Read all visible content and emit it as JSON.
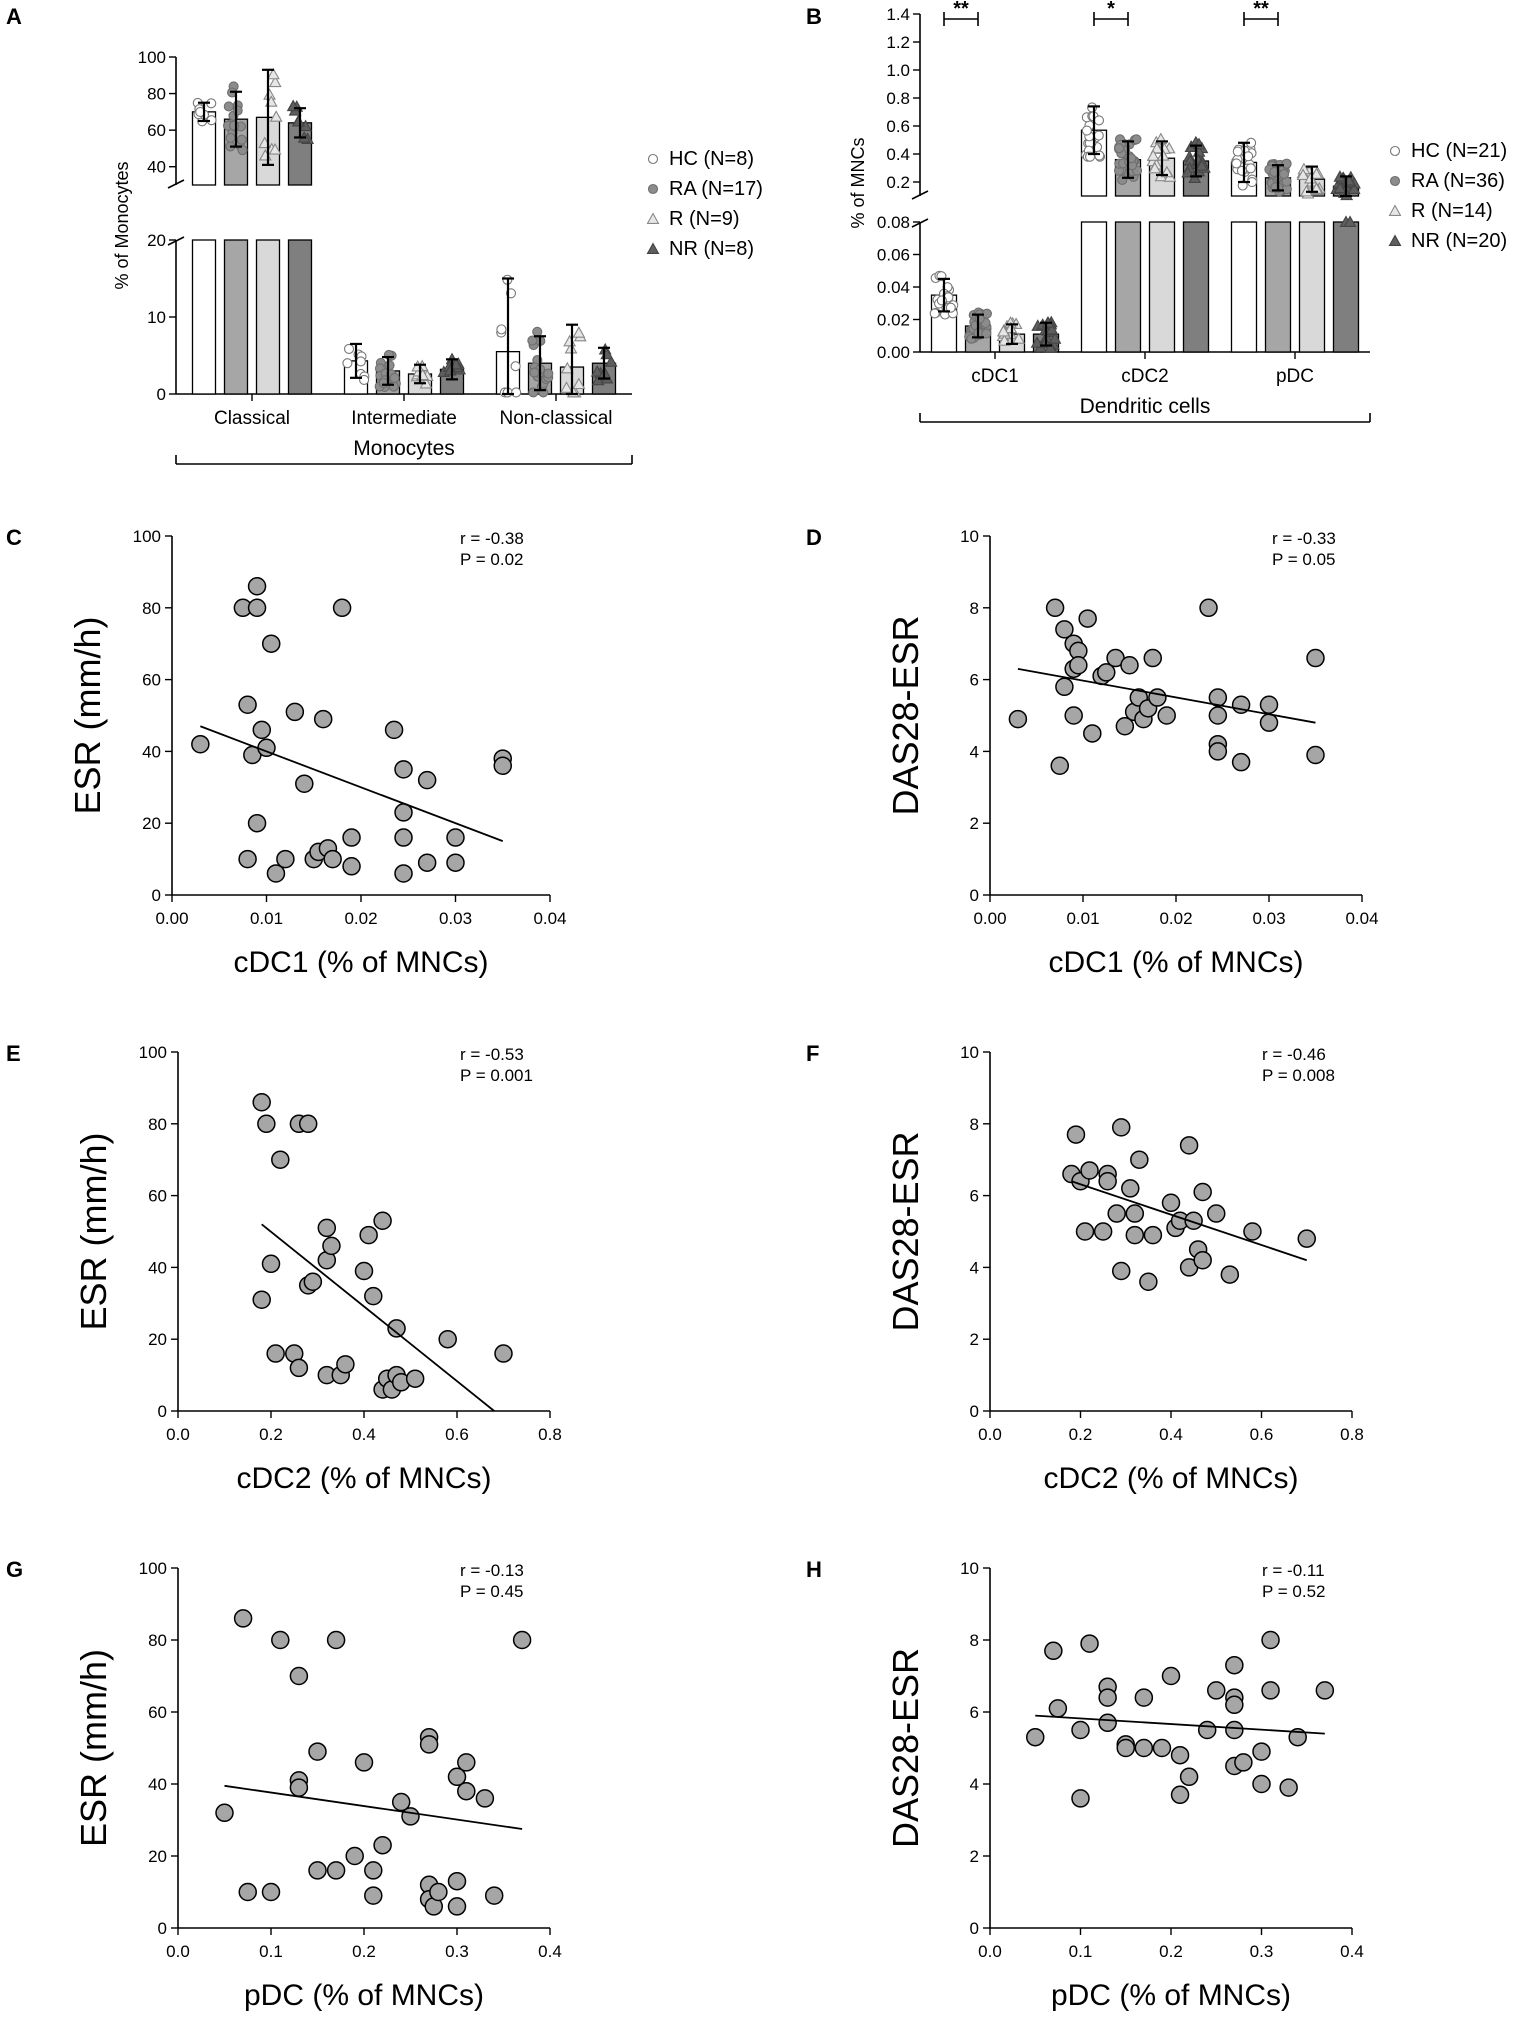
{
  "panels": {
    "A": "A",
    "B": "B",
    "C": "C",
    "D": "D",
    "E": "E",
    "F": "F",
    "G": "G",
    "H": "H"
  },
  "colors": {
    "HC": "#ffffff",
    "RA": "#a6a6a6",
    "R": "#d9d9d9",
    "NR": "#7f7f7f",
    "scatter_fill": "#a6a6a6",
    "line": "#000000"
  },
  "chart_data": [
    {
      "id": "A",
      "type": "bar",
      "title": "",
      "ylabel": "% of Monocytes",
      "group_label": "Monocytes",
      "categories": [
        "Classical",
        "Intermediate",
        "Non-classical"
      ],
      "axis_break": {
        "lower": [
          0,
          20
        ],
        "upper": [
          30,
          100
        ]
      },
      "yticks_lower": [
        "0",
        "10",
        "20"
      ],
      "yticks_upper": [
        "40",
        "60",
        "80",
        "100"
      ],
      "series": [
        {
          "name": "HC (N=8)",
          "marker": "circle-open",
          "values": [
            70,
            4.3,
            5.5
          ],
          "sd": [
            5,
            2.2,
            9.5
          ]
        },
        {
          "name": "RA (N=17)",
          "marker": "circle-filled",
          "values": [
            66,
            3.0,
            4.0
          ],
          "sd": [
            15,
            1.8,
            3.5
          ]
        },
        {
          "name": "R (N=9)",
          "marker": "triangle-open",
          "values": [
            67,
            2.6,
            3.5
          ],
          "sd": [
            26,
            1.2,
            5.5
          ]
        },
        {
          "name": "NR (N=8)",
          "marker": "triangle-filled",
          "values": [
            64,
            3.2,
            4.0
          ],
          "sd": [
            8,
            1.3,
            2.0
          ]
        }
      ]
    },
    {
      "id": "B",
      "type": "bar",
      "title": "",
      "ylabel": "% of MNCs",
      "group_label": "Dendritic cells",
      "categories": [
        "cDC1",
        "cDC2",
        "pDC"
      ],
      "axis_break": {
        "lower": [
          0,
          0.08
        ],
        "upper": [
          0.1,
          1.4
        ]
      },
      "yticks_lower": [
        "0.00",
        "0.02",
        "0.04",
        "0.06",
        "0.08"
      ],
      "yticks_upper": [
        "0.2",
        "0.4",
        "0.6",
        "0.8",
        "1.0",
        "1.2",
        "1.4"
      ],
      "significance": [
        "**",
        "*",
        "**"
      ],
      "series": [
        {
          "name": "HC (N=21)",
          "marker": "circle-open",
          "values": [
            0.035,
            0.57,
            0.34
          ],
          "sd": [
            0.01,
            0.17,
            0.14
          ]
        },
        {
          "name": "RA (N=36)",
          "marker": "circle-filled",
          "values": [
            0.016,
            0.36,
            0.23
          ],
          "sd": [
            0.007,
            0.13,
            0.09
          ]
        },
        {
          "name": "R (N=14)",
          "marker": "triangle-open",
          "values": [
            0.011,
            0.37,
            0.22
          ],
          "sd": [
            0.006,
            0.12,
            0.09
          ]
        },
        {
          "name": "NR (N=20)",
          "marker": "triangle-filled",
          "values": [
            0.011,
            0.35,
            0.17
          ],
          "sd": [
            0.007,
            0.11,
            0.07
          ]
        }
      ]
    },
    {
      "id": "C",
      "type": "scatter",
      "xlabel": "cDC1 (% of MNCs)",
      "ylabel": "ESR (mm/h)",
      "xlim": [
        0,
        0.04
      ],
      "ylim": [
        0,
        100
      ],
      "xticks": [
        "0.00",
        "0.01",
        "0.02",
        "0.03",
        "0.04"
      ],
      "yticks": [
        "0",
        "20",
        "40",
        "60",
        "80",
        "100"
      ],
      "r_text": "r = -0.38",
      "p_text": "P = 0.02",
      "fit": [
        [
          0.003,
          47
        ],
        [
          0.035,
          15
        ]
      ],
      "points": [
        [
          0.003,
          42
        ],
        [
          0.0075,
          80
        ],
        [
          0.008,
          53
        ],
        [
          0.0085,
          39
        ],
        [
          0.009,
          86
        ],
        [
          0.009,
          80
        ],
        [
          0.0095,
          46
        ],
        [
          0.01,
          41
        ],
        [
          0.0105,
          70
        ],
        [
          0.009,
          20
        ],
        [
          0.008,
          10
        ],
        [
          0.011,
          6
        ],
        [
          0.012,
          10
        ],
        [
          0.013,
          51
        ],
        [
          0.014,
          31
        ],
        [
          0.015,
          10
        ],
        [
          0.0155,
          12
        ],
        [
          0.016,
          49
        ],
        [
          0.0165,
          13
        ],
        [
          0.017,
          10
        ],
        [
          0.018,
          80
        ],
        [
          0.019,
          16
        ],
        [
          0.019,
          8
        ],
        [
          0.0235,
          46
        ],
        [
          0.0245,
          35
        ],
        [
          0.0245,
          23
        ],
        [
          0.0245,
          16
        ],
        [
          0.0245,
          6
        ],
        [
          0.027,
          32
        ],
        [
          0.027,
          9
        ],
        [
          0.03,
          16
        ],
        [
          0.03,
          9
        ],
        [
          0.035,
          38
        ],
        [
          0.035,
          36
        ]
      ]
    },
    {
      "id": "D",
      "type": "scatter",
      "xlabel": "cDC1 (% of MNCs)",
      "ylabel": "DAS28-ESR",
      "xlim": [
        0,
        0.04
      ],
      "ylim": [
        0,
        10
      ],
      "xticks": [
        "0.00",
        "0.01",
        "0.02",
        "0.03",
        "0.04"
      ],
      "yticks": [
        "0",
        "2",
        "4",
        "6",
        "8",
        "10"
      ],
      "r_text": "r = -0.33",
      "p_text": "P = 0.05",
      "fit": [
        [
          0.003,
          6.3
        ],
        [
          0.035,
          4.8
        ]
      ],
      "points": [
        [
          0.003,
          4.9
        ],
        [
          0.007,
          8.0
        ],
        [
          0.0075,
          3.6
        ],
        [
          0.008,
          7.4
        ],
        [
          0.008,
          5.8
        ],
        [
          0.009,
          7.0
        ],
        [
          0.009,
          6.3
        ],
        [
          0.009,
          5.0
        ],
        [
          0.0095,
          6.8
        ],
        [
          0.0095,
          6.4
        ],
        [
          0.0105,
          7.7
        ],
        [
          0.011,
          4.5
        ],
        [
          0.012,
          6.1
        ],
        [
          0.0125,
          6.2
        ],
        [
          0.0135,
          6.6
        ],
        [
          0.0145,
          4.7
        ],
        [
          0.015,
          6.4
        ],
        [
          0.0155,
          5.1
        ],
        [
          0.016,
          5.5
        ],
        [
          0.0165,
          4.9
        ],
        [
          0.017,
          5.2
        ],
        [
          0.0175,
          6.6
        ],
        [
          0.018,
          5.5
        ],
        [
          0.019,
          5.0
        ],
        [
          0.0235,
          8.0
        ],
        [
          0.0245,
          5.5
        ],
        [
          0.0245,
          5.0
        ],
        [
          0.0245,
          4.2
        ],
        [
          0.0245,
          4.0
        ],
        [
          0.027,
          5.3
        ],
        [
          0.027,
          3.7
        ],
        [
          0.03,
          5.3
        ],
        [
          0.03,
          4.8
        ],
        [
          0.035,
          6.6
        ],
        [
          0.035,
          3.9
        ]
      ]
    },
    {
      "id": "E",
      "type": "scatter",
      "xlabel": "cDC2 (% of MNCs)",
      "ylabel": "ESR (mm/h)",
      "xlim": [
        0,
        0.8
      ],
      "ylim": [
        0,
        100
      ],
      "xticks": [
        "0.0",
        "0.2",
        "0.4",
        "0.6",
        "0.8"
      ],
      "yticks": [
        "0",
        "20",
        "40",
        "60",
        "80",
        "100"
      ],
      "r_text": "r = -0.53",
      "p_text": "P = 0.001",
      "fit": [
        [
          0.18,
          52
        ],
        [
          0.68,
          0
        ]
      ],
      "points": [
        [
          0.18,
          86
        ],
        [
          0.18,
          31
        ],
        [
          0.19,
          80
        ],
        [
          0.2,
          41
        ],
        [
          0.21,
          16
        ],
        [
          0.22,
          70
        ],
        [
          0.25,
          16
        ],
        [
          0.26,
          80
        ],
        [
          0.26,
          12
        ],
        [
          0.28,
          80
        ],
        [
          0.28,
          35
        ],
        [
          0.29,
          36
        ],
        [
          0.32,
          51
        ],
        [
          0.32,
          10
        ],
        [
          0.32,
          42
        ],
        [
          0.33,
          46
        ],
        [
          0.35,
          10
        ],
        [
          0.36,
          13
        ],
        [
          0.4,
          39
        ],
        [
          0.41,
          49
        ],
        [
          0.42,
          32
        ],
        [
          0.44,
          53
        ],
        [
          0.44,
          6
        ],
        [
          0.45,
          9
        ],
        [
          0.46,
          6
        ],
        [
          0.47,
          23
        ],
        [
          0.47,
          10
        ],
        [
          0.48,
          8
        ],
        [
          0.51,
          9
        ],
        [
          0.58,
          20
        ],
        [
          0.7,
          16
        ]
      ]
    },
    {
      "id": "F",
      "type": "scatter",
      "xlabel": "cDC2 (% of MNCs)",
      "ylabel": "DAS28-ESR",
      "xlim": [
        0,
        0.8
      ],
      "ylim": [
        0,
        10
      ],
      "xticks": [
        "0.0",
        "0.2",
        "0.4",
        "0.6",
        "0.8"
      ],
      "yticks": [
        "0",
        "2",
        "4",
        "6",
        "8",
        "10"
      ],
      "r_text": "r = -0.46",
      "p_text": "P = 0.008",
      "fit": [
        [
          0.18,
          6.4
        ],
        [
          0.7,
          4.2
        ]
      ],
      "points": [
        [
          0.18,
          6.6
        ],
        [
          0.19,
          7.7
        ],
        [
          0.2,
          6.4
        ],
        [
          0.21,
          5.0
        ],
        [
          0.22,
          6.7
        ],
        [
          0.25,
          5.0
        ],
        [
          0.26,
          6.6
        ],
        [
          0.26,
          6.4
        ],
        [
          0.28,
          5.5
        ],
        [
          0.29,
          7.9
        ],
        [
          0.29,
          3.9
        ],
        [
          0.31,
          6.2
        ],
        [
          0.32,
          4.9
        ],
        [
          0.32,
          5.5
        ],
        [
          0.33,
          7.0
        ],
        [
          0.35,
          3.6
        ],
        [
          0.36,
          4.9
        ],
        [
          0.4,
          5.8
        ],
        [
          0.41,
          5.1
        ],
        [
          0.42,
          5.3
        ],
        [
          0.44,
          4.0
        ],
        [
          0.44,
          7.4
        ],
        [
          0.45,
          5.3
        ],
        [
          0.46,
          4.5
        ],
        [
          0.47,
          6.1
        ],
        [
          0.47,
          4.2
        ],
        [
          0.5,
          5.5
        ],
        [
          0.53,
          3.8
        ],
        [
          0.58,
          5.0
        ],
        [
          0.7,
          4.8
        ]
      ]
    },
    {
      "id": "G",
      "type": "scatter",
      "xlabel": "pDC (% of MNCs)",
      "ylabel": "ESR (mm/h)",
      "xlim": [
        0,
        0.4
      ],
      "ylim": [
        0,
        100
      ],
      "xticks": [
        "0.0",
        "0.1",
        "0.2",
        "0.3",
        "0.4"
      ],
      "yticks": [
        "0",
        "20",
        "40",
        "60",
        "80",
        "100"
      ],
      "r_text": "r = -0.13",
      "p_text": "P = 0.45",
      "fit": [
        [
          0.05,
          39.5
        ],
        [
          0.37,
          27.5
        ]
      ],
      "points": [
        [
          0.05,
          32
        ],
        [
          0.07,
          86
        ],
        [
          0.075,
          10
        ],
        [
          0.1,
          10
        ],
        [
          0.11,
          80
        ],
        [
          0.13,
          70
        ],
        [
          0.13,
          41
        ],
        [
          0.13,
          39
        ],
        [
          0.15,
          49
        ],
        [
          0.15,
          16
        ],
        [
          0.17,
          80
        ],
        [
          0.17,
          16
        ],
        [
          0.19,
          20
        ],
        [
          0.2,
          46
        ],
        [
          0.21,
          16
        ],
        [
          0.21,
          9
        ],
        [
          0.22,
          23
        ],
        [
          0.24,
          35
        ],
        [
          0.25,
          31
        ],
        [
          0.27,
          53
        ],
        [
          0.27,
          51
        ],
        [
          0.27,
          12
        ],
        [
          0.27,
          8
        ],
        [
          0.275,
          6
        ],
        [
          0.28,
          10
        ],
        [
          0.3,
          42
        ],
        [
          0.3,
          13
        ],
        [
          0.3,
          6
        ],
        [
          0.31,
          46
        ],
        [
          0.31,
          38
        ],
        [
          0.33,
          36
        ],
        [
          0.34,
          9
        ],
        [
          0.37,
          80
        ]
      ]
    },
    {
      "id": "H",
      "type": "scatter",
      "xlabel": "pDC (% of MNCs)",
      "ylabel": "DAS28-ESR",
      "xlim": [
        0,
        0.4
      ],
      "ylim": [
        0,
        10
      ],
      "xticks": [
        "0.0",
        "0.1",
        "0.2",
        "0.3",
        "0.4"
      ],
      "yticks": [
        "0",
        "2",
        "4",
        "6",
        "8",
        "10"
      ],
      "r_text": "r = -0.11",
      "p_text": "P = 0.52",
      "fit": [
        [
          0.05,
          5.9
        ],
        [
          0.37,
          5.4
        ]
      ],
      "points": [
        [
          0.05,
          5.3
        ],
        [
          0.07,
          7.7
        ],
        [
          0.075,
          6.1
        ],
        [
          0.1,
          3.6
        ],
        [
          0.1,
          5.5
        ],
        [
          0.11,
          7.9
        ],
        [
          0.13,
          6.7
        ],
        [
          0.13,
          6.4
        ],
        [
          0.13,
          5.7
        ],
        [
          0.15,
          5.1
        ],
        [
          0.15,
          5.0
        ],
        [
          0.17,
          6.4
        ],
        [
          0.17,
          5.0
        ],
        [
          0.19,
          5.0
        ],
        [
          0.2,
          7.0
        ],
        [
          0.21,
          4.8
        ],
        [
          0.21,
          3.7
        ],
        [
          0.22,
          4.2
        ],
        [
          0.24,
          5.5
        ],
        [
          0.25,
          6.6
        ],
        [
          0.27,
          7.3
        ],
        [
          0.27,
          6.4
        ],
        [
          0.27,
          6.2
        ],
        [
          0.27,
          5.5
        ],
        [
          0.27,
          4.5
        ],
        [
          0.28,
          4.6
        ],
        [
          0.3,
          4.9
        ],
        [
          0.3,
          4.0
        ],
        [
          0.31,
          8.0
        ],
        [
          0.31,
          6.6
        ],
        [
          0.33,
          3.9
        ],
        [
          0.34,
          5.3
        ],
        [
          0.37,
          6.6
        ]
      ]
    }
  ]
}
